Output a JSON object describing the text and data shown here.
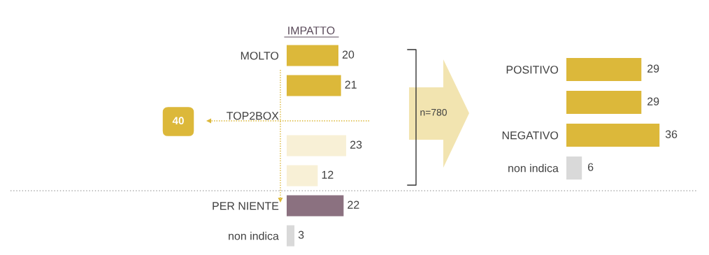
{
  "chart_data": [
    {
      "type": "bar",
      "orientation": "horizontal",
      "title": "IMPATTO",
      "categories": [
        "MOLTO",
        null,
        "TOP2BOX",
        null,
        null,
        "PER NIENTE",
        "non indica"
      ],
      "values": [
        20,
        21,
        null,
        23,
        12,
        22,
        3
      ],
      "colors": [
        "#dcb83a",
        "#dcb83a",
        "#dcb83a",
        "#f8f0d6",
        "#f8f0d6",
        "#8b7180",
        "#d9d9d9"
      ],
      "data_labels": true,
      "annotations": [
        "40"
      ]
    },
    {
      "type": "bar",
      "orientation": "horizontal",
      "categories": [
        "POSITIVO",
        null,
        "NEGATIVO",
        "non indica"
      ],
      "values": [
        29,
        29,
        36,
        6
      ],
      "colors": [
        "#dcb83a",
        "#dcb83a",
        "#dcb83a",
        "#d9d9d9"
      ],
      "data_labels": true,
      "annotations": [
        "n=780"
      ]
    }
  ]
}
